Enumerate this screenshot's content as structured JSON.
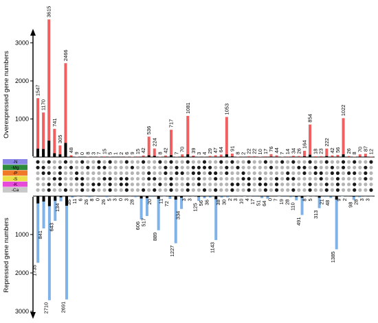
{
  "chart_data": {
    "type": "bar",
    "panels": [
      {
        "name": "overexpressed",
        "ylabel": "Overexpressed gene numbers",
        "yticks": [
          1000,
          2000,
          3000
        ],
        "ylim": [
          0,
          3800
        ],
        "series": [
          {
            "name": "total",
            "color": "#f06060",
            "values": [
              1547,
              1170,
              3615,
              741,
              305,
              2466,
              48,
              9,
              0,
              8,
              3,
              7,
              15,
              5,
              1,
              2,
              6,
              9,
              15,
              42,
              536,
              224,
              8,
              42,
              717,
              7,
              70,
              1081,
              39,
              3,
              4,
              29,
              47,
              64,
              1053,
              91,
              8,
              2,
              22,
              22,
              10,
              17,
              76,
              44,
              7,
              14,
              34,
              26,
              164,
              854,
              18,
              23,
              222,
              42,
              56,
              1022,
              26,
              8,
              70,
              87,
              12
            ]
          },
          {
            "name": "black",
            "color": "#000000",
            "values": [
              220,
              210,
              430,
              100,
              70,
              370,
              10,
              2,
              0,
              2,
              1,
              2,
              3,
              1,
              0,
              1,
              2,
              2,
              3,
              8,
              45,
              30,
              2,
              8,
              50,
              2,
              10,
              70,
              12,
              1,
              1,
              5,
              8,
              10,
              70,
              15,
              2,
              1,
              4,
              4,
              3,
              4,
              10,
              8,
              2,
              3,
              6,
              5,
              20,
              60,
              4,
              5,
              25,
              8,
              10,
              70,
              6,
              2,
              10,
              12,
              3
            ]
          }
        ],
        "labels": [
          "1547",
          "1170",
          "3615",
          "741",
          "305",
          "2466",
          "48",
          "9",
          "0",
          "8",
          "3",
          "7",
          "15",
          "5",
          "1",
          "2",
          "6",
          "9",
          "15",
          "42",
          "536",
          "224",
          "8",
          "42",
          "717",
          "7",
          "70",
          "1081",
          "39",
          "3",
          "4",
          "29",
          "47",
          "64",
          "1053",
          "91",
          "8",
          "2",
          "22",
          "22",
          "10",
          "17",
          "76",
          "44",
          "7",
          "14",
          "34",
          "26",
          "164",
          "854",
          "18",
          "23",
          "222",
          "42",
          "56",
          "1022",
          "26",
          "8",
          "70",
          "87",
          "12"
        ]
      },
      {
        "name": "repressed",
        "ylabel": "Repressed gene numbers",
        "yticks": [
          1000,
          2000,
          3000
        ],
        "ylim": [
          0,
          3000
        ],
        "series": [
          {
            "name": "total",
            "color": "#7fb3e8",
            "values": [
              1735,
              841,
              2710,
              643,
              134,
              2691,
              35,
              11,
              6,
              26,
              8,
              0,
              26,
              5,
              3,
              0,
              3,
              28,
              606,
              517,
              20,
              889,
              11,
              72,
              1227,
              334,
              3,
              3,
              125,
              56,
              36,
              1143,
              38,
              30,
              2,
              3,
              10,
              4,
              17,
              51,
              64,
              0,
              7,
              19,
              28,
              110,
              491,
              8,
              5,
              313,
              21,
              48,
              1385,
              9,
              2,
              98,
              28,
              3,
              3
            ]
          },
          {
            "name": "black",
            "color": "#000000",
            "values": [
              190,
              140,
              260,
              120,
              30,
              250,
              8,
              3,
              2,
              5,
              2,
              0,
              5,
              1,
              1,
              0,
              1,
              5,
              60,
              50,
              4,
              70,
              3,
              12,
              90,
              40,
              1,
              1,
              20,
              12,
              8,
              80,
              8,
              6,
              1,
              1,
              3,
              1,
              4,
              10,
              12,
              0,
              2,
              4,
              6,
              20,
              45,
              2,
              1,
              40,
              5,
              10,
              90,
              2,
              1,
              15,
              6,
              1,
              1
            ]
          }
        ],
        "labels": [
          "1735",
          "841",
          "2710",
          "643",
          "134",
          "2691",
          "35",
          "11",
          "6",
          "26",
          "8",
          "0",
          "26",
          "5",
          "3",
          "0",
          "3",
          "28",
          "606",
          "517",
          "20",
          "889",
          "11",
          "72",
          "1227",
          "334",
          "3",
          "3",
          "125",
          "56",
          "36",
          "1143",
          "38",
          "30",
          "2",
          "3",
          "10",
          "4",
          "17",
          "51",
          "64",
          "0",
          "7",
          "19",
          "28",
          "110",
          "491",
          "8",
          "5",
          "313",
          "21",
          "48",
          "1385",
          "9",
          "2",
          "98",
          "28",
          "3",
          "3"
        ]
      }
    ],
    "legend": [
      {
        "label": "-N",
        "color": "#8a86e6"
      },
      {
        "label": "-Mg",
        "color": "#2e8b3c"
      },
      {
        "label": "-P",
        "color": "#f07a28"
      },
      {
        "label": "-S",
        "color": "#ece048"
      },
      {
        "label": "-K",
        "color": "#e64ad8"
      },
      {
        "label": "-Ca",
        "color": "#c8c8c8"
      }
    ],
    "matrix": {
      "rows": 6,
      "columns": 61,
      "filled_color": "#1a1a1a",
      "empty_color": "#b4b4b4"
    }
  }
}
